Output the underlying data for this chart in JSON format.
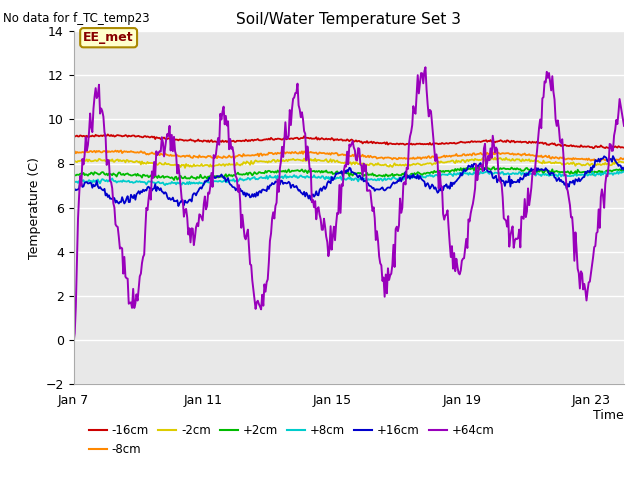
{
  "title": "Soil/Water Temperature Set 3",
  "subtitle": "No data for f_TC_temp23",
  "xlabel": "Time",
  "ylabel": "Temperature (C)",
  "ylim": [
    -2,
    14
  ],
  "yticks": [
    -2,
    0,
    2,
    4,
    6,
    8,
    10,
    12,
    14
  ],
  "xtick_labels": [
    "Jan 7",
    "Jan 11",
    "Jan 15",
    "Jan 19",
    "Jan 23"
  ],
  "xtick_positions": [
    0,
    4,
    8,
    12,
    16
  ],
  "xlim": [
    0,
    17
  ],
  "bg_color": "#e8e8e8",
  "legend_label": "EE_met",
  "legend_box_facecolor": "#ffffcc",
  "legend_box_edgecolor": "#aa8800",
  "series_colors": {
    "-16cm": "#cc0000",
    "-8cm": "#ff8800",
    "-2cm": "#ddcc00",
    "+2cm": "#00bb00",
    "+8cm": "#00cccc",
    "+16cm": "#0000cc",
    "+64cm": "#9900bb"
  },
  "n_points": 500,
  "days": 17
}
